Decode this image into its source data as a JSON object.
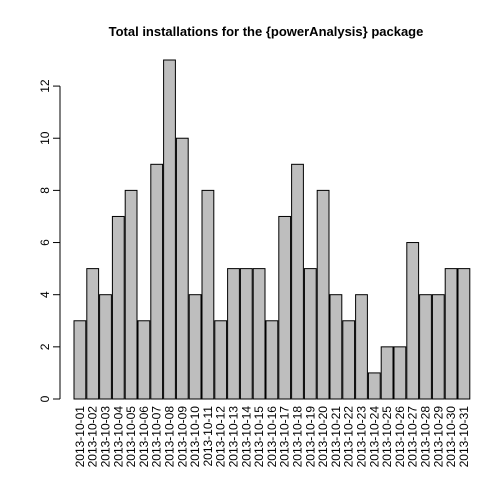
{
  "chart_data": {
    "type": "bar",
    "title": "Total installations for the {powerAnalysis} package",
    "xlabel": "",
    "ylabel": "",
    "ylim": [
      0,
      13
    ],
    "yticks": [
      0,
      2,
      4,
      6,
      8,
      10,
      12
    ],
    "grid": false,
    "bar_color": "#bebebe",
    "bar_border_color": "#000000",
    "categories": [
      "2013-10-01",
      "2013-10-02",
      "2013-10-03",
      "2013-10-04",
      "2013-10-05",
      "2013-10-06",
      "2013-10-07",
      "2013-10-08",
      "2013-10-09",
      "2013-10-10",
      "2013-10-11",
      "2013-10-12",
      "2013-10-13",
      "2013-10-14",
      "2013-10-15",
      "2013-10-16",
      "2013-10-17",
      "2013-10-18",
      "2013-10-19",
      "2013-10-20",
      "2013-10-21",
      "2013-10-22",
      "2013-10-23",
      "2013-10-24",
      "2013-10-25",
      "2013-10-26",
      "2013-10-27",
      "2013-10-28",
      "2013-10-29",
      "2013-10-30",
      "2013-10-31"
    ],
    "values": [
      3,
      5,
      4,
      7,
      8,
      3,
      9,
      13,
      10,
      4,
      8,
      3,
      5,
      5,
      5,
      3,
      7,
      9,
      5,
      8,
      4,
      3,
      4,
      1,
      2,
      2,
      6,
      4,
      4,
      5,
      5
    ]
  }
}
